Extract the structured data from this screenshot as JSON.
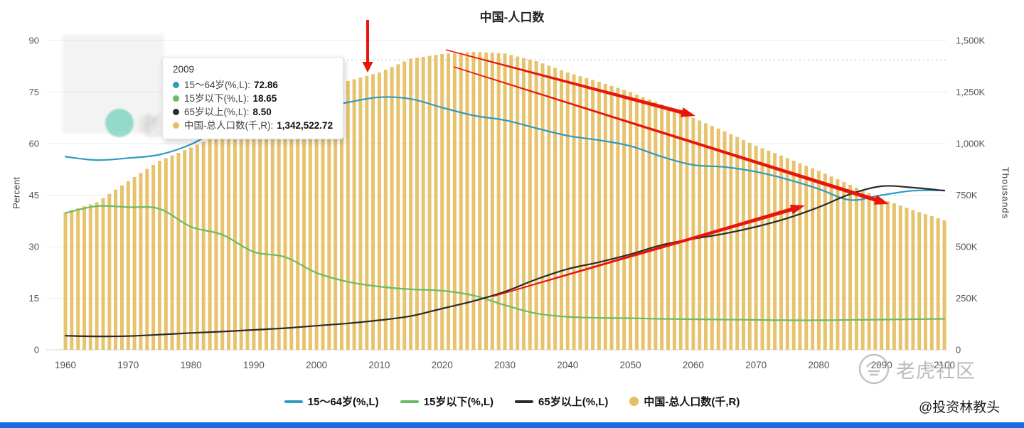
{
  "page": {
    "title": "中国-人口数",
    "bottom_bar_color": "#1b6be0"
  },
  "axes": {
    "left_title": "Percent",
    "right_title": "Thousands",
    "left_ticks": [
      "0",
      "15",
      "30",
      "45",
      "60",
      "75",
      "90"
    ],
    "right_ticks": [
      "0",
      "250K",
      "500K",
      "750K",
      "1,000K",
      "1,250K",
      "1,500K"
    ],
    "x_ticks": [
      "1960",
      "1970",
      "1980",
      "1990",
      "2000",
      "2010",
      "2020",
      "2030",
      "2040",
      "2050",
      "2060",
      "2070",
      "2080",
      "2090",
      "2100"
    ]
  },
  "tooltip": {
    "title": "2009",
    "rows": [
      {
        "label": "15～64岁(%,L):",
        "value": "72.86",
        "color": "#2f9bc1"
      },
      {
        "label": "15岁以下(%,L):",
        "value": "18.65",
        "color": "#67bd63"
      },
      {
        "label": "65岁以上(%,L):",
        "value": "8.50",
        "color": "#2b2b2b"
      },
      {
        "label": "中国-总人口数(千,R):",
        "value": "1,342,522.72",
        "color": "#e5be62"
      }
    ]
  },
  "legend": {
    "items": [
      {
        "label": "15～64岁(%,L)",
        "color": "#2f9bc1",
        "type": "line"
      },
      {
        "label": "15岁以下(%,L)",
        "color": "#67bd63",
        "type": "line"
      },
      {
        "label": "65岁以上(%,L)",
        "color": "#2b2b2b",
        "type": "line"
      },
      {
        "label": "中国-总人口数(千,R)",
        "color": "#e5be62",
        "type": "circle"
      }
    ]
  },
  "watermark": {
    "left_text": "老虎社区",
    "right_text": "老虎社区",
    "handle": "@投资林教头"
  },
  "chart_data": {
    "type": "bar",
    "title": "中国-人口数",
    "grid": true,
    "legend_position": "bottom",
    "x": [
      1960,
      1965,
      1970,
      1975,
      1980,
      1985,
      1990,
      1995,
      2000,
      2005,
      2010,
      2015,
      2020,
      2025,
      2030,
      2035,
      2040,
      2045,
      2050,
      2055,
      2060,
      2065,
      2070,
      2075,
      2080,
      2085,
      2090,
      2095,
      2100
    ],
    "bar_series": {
      "name": "中国-总人口数(千,R)",
      "axis": "right",
      "color": "#e5be62",
      "values": [
        667070,
        715185,
        818315,
        916395,
        981235,
        1051040,
        1135185,
        1204855,
        1262645,
        1303720,
        1345035,
        1412000,
        1435000,
        1445000,
        1437000,
        1400000,
        1345000,
        1300000,
        1250000,
        1190000,
        1125000,
        1060000,
        990000,
        930000,
        868000,
        800000,
        732000,
        678000,
        628000
      ]
    },
    "line_series": [
      {
        "name": "15～64岁(%,L)",
        "axis": "left",
        "color": "#2f9bc1",
        "values": [
          56.2,
          55.2,
          55.8,
          56.8,
          59.8,
          64.5,
          66.7,
          67.6,
          70.1,
          72.0,
          73.5,
          73.0,
          70.5,
          68.2,
          66.8,
          64.5,
          62.3,
          61.0,
          59.3,
          56.2,
          53.8,
          53.2,
          51.8,
          49.6,
          46.8,
          43.6,
          45.0,
          46.3,
          46.4
        ]
      },
      {
        "name": "15岁以下(%,L)",
        "axis": "left",
        "color": "#67bd63",
        "values": [
          39.8,
          41.8,
          41.5,
          41.0,
          35.8,
          33.5,
          28.5,
          27.0,
          22.4,
          19.8,
          18.4,
          17.6,
          17.2,
          15.8,
          13.0,
          10.6,
          9.6,
          9.3,
          9.2,
          9.0,
          8.9,
          8.8,
          8.7,
          8.6,
          8.6,
          8.7,
          8.8,
          8.9,
          9.0
        ]
      },
      {
        "name": "65岁以上(%,L)",
        "axis": "left",
        "color": "#2b2b2b",
        "values": [
          4.1,
          3.9,
          4.0,
          4.4,
          4.9,
          5.3,
          5.8,
          6.3,
          7.0,
          7.7,
          8.6,
          9.8,
          12.0,
          14.2,
          16.9,
          20.5,
          23.5,
          25.5,
          27.8,
          30.5,
          32.3,
          33.8,
          35.8,
          38.3,
          41.5,
          45.3,
          47.6,
          47.2,
          46.3
        ]
      }
    ],
    "left_axis": {
      "label": "Percent",
      "min": 0,
      "max": 90
    },
    "right_axis": {
      "label": "Thousands",
      "min": 0,
      "max": 1500000
    },
    "hover_year": 2009,
    "hover_values": {
      "working_age_pct": 72.86,
      "under15_pct": 18.65,
      "over65_pct": 8.5,
      "total_population_thousands": 1342522.72
    },
    "dashed_refline_right_value": 1407000,
    "annotations": {
      "color": "#e8150b",
      "arrows": [
        {
          "name": "peak-pointer-down-arrow",
          "from": [
            517,
            28
          ],
          "to": [
            517,
            102
          ],
          "tail_width": 4,
          "shaft_end_width": 4,
          "head_width": 15,
          "head_length": 15
        },
        {
          "name": "population-decline-arrow",
          "from": [
            627,
            70
          ],
          "to": [
            978,
            163
          ],
          "tail_width": 1.5,
          "shaft_end_width": 5.5,
          "head_width": 14,
          "head_length": 20
        },
        {
          "name": "working-age-decline-arrow",
          "from": [
            638,
            94
          ],
          "to": [
            1250,
            287
          ],
          "tail_width": 1.5,
          "shaft_end_width": 5.5,
          "head_width": 14,
          "head_length": 20
        },
        {
          "name": "elderly-rise-arrow",
          "from": [
            693,
            417
          ],
          "to": [
            1132,
            289
          ],
          "tail_width": 1.5,
          "shaft_end_width": 5.5,
          "head_width": 14,
          "head_length": 20
        }
      ]
    }
  }
}
